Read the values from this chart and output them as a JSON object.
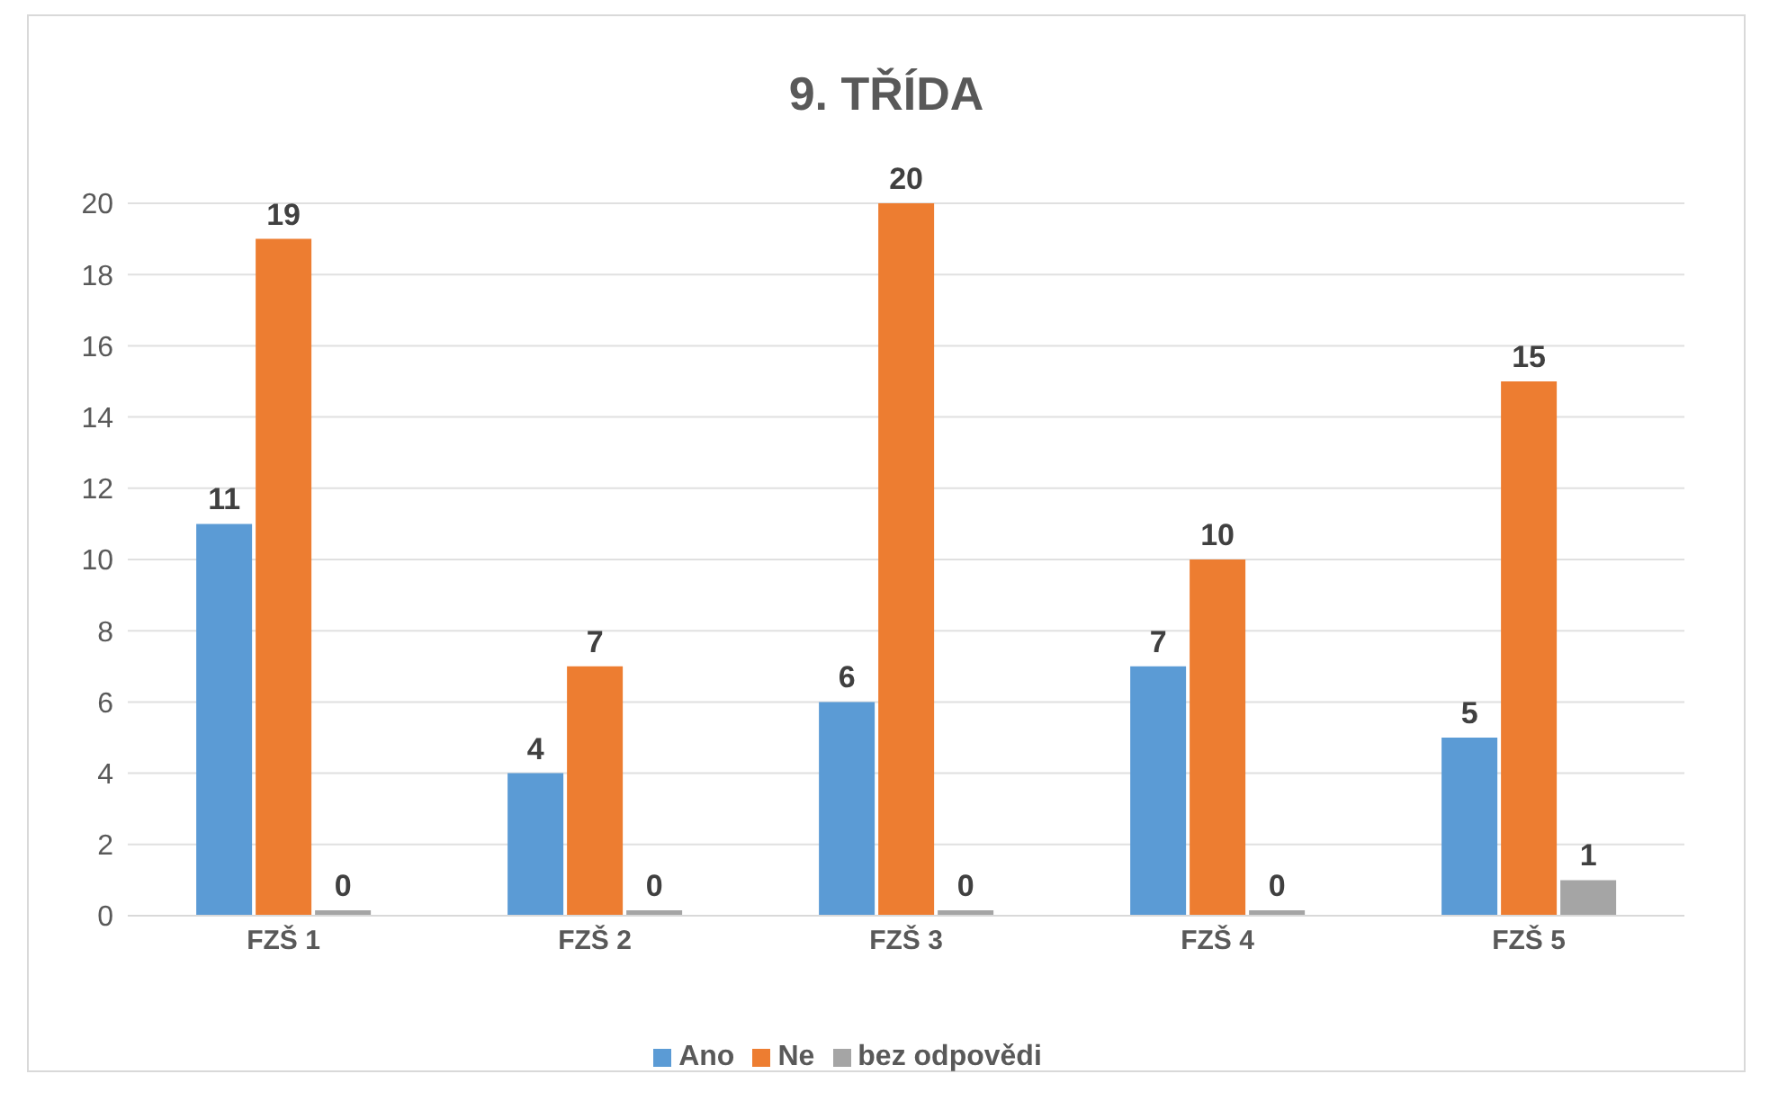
{
  "chart_data": {
    "type": "bar",
    "title": "9. TŘÍDA",
    "categories": [
      "FZŠ 1",
      "FZŠ 2",
      "FZŠ 3",
      "FZŠ 4",
      "FZŠ 5"
    ],
    "series": [
      {
        "name": "Ano",
        "color": "#5b9bd5",
        "values": [
          11,
          4,
          6,
          7,
          5
        ]
      },
      {
        "name": "Ne",
        "color": "#ed7d31",
        "values": [
          19,
          7,
          20,
          10,
          15
        ]
      },
      {
        "name": "bez odpovědi",
        "color": "#a5a5a5",
        "values": [
          0,
          0,
          0,
          0,
          1
        ]
      }
    ],
    "ylim": [
      0,
      20
    ],
    "yticks": [
      0,
      2,
      4,
      6,
      8,
      10,
      12,
      14,
      16,
      18,
      20
    ],
    "grid": "y",
    "legend": "bottom",
    "data_labels": true
  }
}
